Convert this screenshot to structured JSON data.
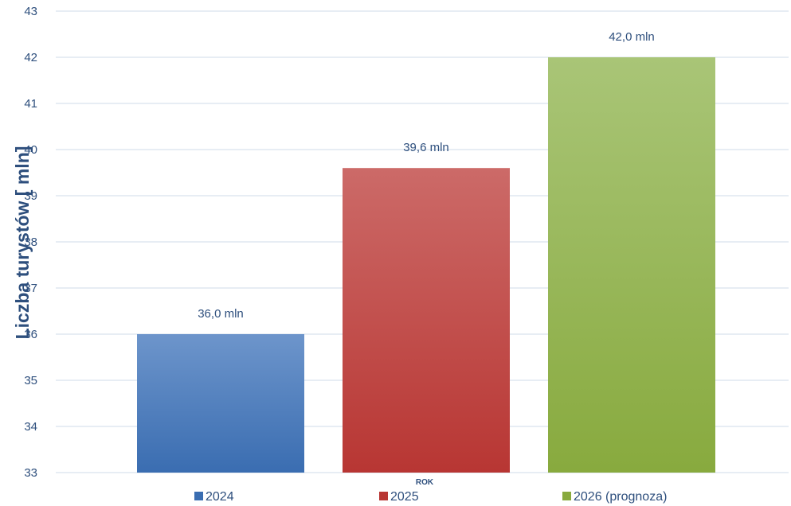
{
  "chart_data": {
    "type": "bar",
    "categories": [
      "2024",
      "2025",
      "2026 (prognoza)"
    ],
    "values": [
      36.0,
      39.6,
      42.0
    ],
    "data_labels": [
      "36,0 mln",
      "39,6 mln",
      "42,0 mln"
    ],
    "title": "",
    "xlabel": "ROK",
    "ylabel": "Liczba turystów [ mln]",
    "ylim": [
      33,
      43
    ],
    "yticks": [
      "33",
      "34",
      "35",
      "36",
      "37",
      "38",
      "39",
      "40",
      "41",
      "42",
      "43"
    ],
    "grid": true,
    "legend": {
      "position": "bottom",
      "entries": [
        "2024",
        "2025",
        "2026 (prognoza)"
      ]
    },
    "colors": {
      "2024": {
        "top": "#6d95cb",
        "bottom": "#3a6db1"
      },
      "2025": {
        "top": "#cc6a68",
        "bottom": "#b83633"
      },
      "2026 (prognoza)": {
        "top": "#a9c577",
        "bottom": "#88aa3e"
      },
      "text": "#2e4f7d",
      "grid": "#cfdbea"
    }
  }
}
